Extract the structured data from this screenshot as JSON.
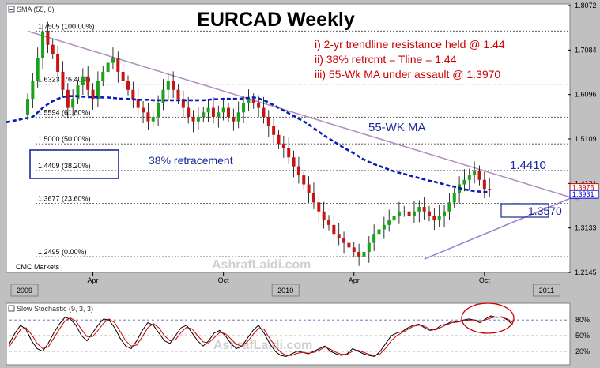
{
  "chart_data": [
    {
      "type": "candlestick",
      "title": "EURCAD Weekly",
      "indicator_label": "SMA (55, 0)",
      "source_label": "CMC Markets",
      "watermark": "AshrafLaidi.com",
      "y_axis": {
        "ylim": [
          1.2145,
          1.8072
        ],
        "ticks": [
          {
            "value": 1.8072,
            "label": "1.8072"
          },
          {
            "value": 1.7084,
            "label": "1.7084"
          },
          {
            "value": 1.6096,
            "label": "1.6096"
          },
          {
            "value": 1.5109,
            "label": "1.5109"
          },
          {
            "value": 1.4121,
            "label": "1.4121"
          },
          {
            "value": 1.3133,
            "label": "1.3133"
          },
          {
            "value": 1.2145,
            "label": "1.2145"
          }
        ],
        "price_tags": [
          {
            "value": 1.3975,
            "label": "1.3975",
            "color": "#cc0000"
          },
          {
            "value": 1.3931,
            "label": "1.3931",
            "color": "#0000cc"
          }
        ]
      },
      "x_axis": {
        "labels": [
          {
            "week": 0,
            "label": "2009",
            "style": "box"
          },
          {
            "week": 13,
            "label": "Apr",
            "style": "tick"
          },
          {
            "week": 39,
            "label": "Oct",
            "style": "tick"
          },
          {
            "week": 52,
            "label": "2010",
            "style": "box"
          },
          {
            "week": 65,
            "label": "Apr",
            "style": "tick"
          },
          {
            "week": 91,
            "label": "Oct",
            "style": "tick"
          },
          {
            "week": 104,
            "label": "2011",
            "style": "box"
          }
        ]
      },
      "fib_levels": [
        {
          "value": 1.7505,
          "label": "1.7505  (100.00%)"
        },
        {
          "value": 1.6323,
          "label": "1.6323  (76.40%)"
        },
        {
          "value": 1.5594,
          "label": "1.5594  (61.80%)"
        },
        {
          "value": 1.5,
          "label": "1.5000  (50.00%)"
        },
        {
          "value": 1.4409,
          "label": "1.4409  (38.20%)"
        },
        {
          "value": 1.3677,
          "label": "1.3677  (23.60%)"
        },
        {
          "value": 1.2495,
          "label": "1.2495  (0.00%)"
        }
      ],
      "annotations": [
        {
          "text": "i)  2-yr trendline resistance held @ 1.44",
          "color": "#cc0000"
        },
        {
          "text": "ii)  38% retrcmt = Tline = 1.44",
          "color": "#cc0000"
        },
        {
          "text": "iii)  55-Wk MA under assault @ 1.3970",
          "color": "#cc0000"
        },
        {
          "text": "55-WK MA",
          "color": "#1a2a9a"
        },
        {
          "text": "38% retracement",
          "color": "#1a2a9a"
        },
        {
          "text": "1.4410",
          "color": "#1a2a9a"
        },
        {
          "text": "1.3570",
          "color": "#1a2a9a"
        }
      ],
      "series": [
        {
          "name": "",
          "kind": "ohlc",
          "start": 1.565,
          "closes": [
            1.6,
            1.64,
            1.69,
            1.75,
            1.72,
            1.7,
            1.66,
            1.62,
            1.58,
            1.6,
            1.63,
            1.65,
            1.62,
            1.6,
            1.64,
            1.66,
            1.68,
            1.69,
            1.66,
            1.64,
            1.62,
            1.6,
            1.58,
            1.57,
            1.55,
            1.56,
            1.59,
            1.62,
            1.64,
            1.62,
            1.6,
            1.58,
            1.56,
            1.55,
            1.56,
            1.57,
            1.58,
            1.56,
            1.57,
            1.58,
            1.56,
            1.55,
            1.57,
            1.59,
            1.6,
            1.59,
            1.58,
            1.56,
            1.54,
            1.52,
            1.5,
            1.49,
            1.47,
            1.45,
            1.43,
            1.41,
            1.39,
            1.37,
            1.35,
            1.33,
            1.32,
            1.3,
            1.29,
            1.28,
            1.27,
            1.26,
            1.25,
            1.26,
            1.28,
            1.3,
            1.31,
            1.32,
            1.33,
            1.34,
            1.35,
            1.35,
            1.34,
            1.35,
            1.36,
            1.35,
            1.34,
            1.33,
            1.34,
            1.35,
            1.37,
            1.39,
            1.41,
            1.42,
            1.43,
            1.44,
            1.42,
            1.4,
            1.3975
          ]
        },
        {
          "name": "SMA (55, 0)",
          "kind": "line",
          "color": "#0a1cb4",
          "values": [
            1.548,
            1.56,
            1.57,
            1.58,
            1.588,
            1.595,
            1.6,
            1.604,
            1.606,
            1.606,
            1.606,
            1.605,
            1.604,
            1.604,
            1.604,
            1.603,
            1.603,
            1.602,
            1.601,
            1.6,
            1.6,
            1.599,
            1.598,
            1.598,
            1.598,
            1.597,
            1.597,
            1.597,
            1.597,
            1.597,
            1.597,
            1.597,
            1.597,
            1.597,
            1.597,
            1.597,
            1.598,
            1.599,
            1.599,
            1.6,
            1.6,
            1.6,
            1.6,
            1.601,
            1.602,
            1.603,
            1.601,
            1.597,
            1.592,
            1.586,
            1.58,
            1.574,
            1.568,
            1.562,
            1.556,
            1.55,
            1.543,
            1.535,
            1.527,
            1.519,
            1.512,
            1.505,
            1.498,
            1.491,
            1.485,
            1.479,
            1.472,
            1.465,
            1.46,
            1.455,
            1.451,
            1.447,
            1.443,
            1.439,
            1.436,
            1.433,
            1.43,
            1.427,
            1.424,
            1.421,
            1.418,
            1.416,
            1.413,
            1.41,
            1.407,
            1.405,
            1.402,
            1.399,
            1.397,
            1.395,
            1.394,
            1.393,
            1.3931
          ]
        },
        {
          "name": "",
          "kind": "trendline",
          "color": "#b090c0",
          "points": [
            [
              0,
              1.7505
            ],
            [
              110,
              1.375
            ]
          ]
        },
        {
          "name": "",
          "kind": "trendline",
          "color": "#a080d0",
          "points": [
            [
              79,
              1.244
            ],
            [
              110,
              1.388
            ]
          ]
        }
      ]
    },
    {
      "type": "line",
      "title": "Slow Stochastic (9, 3, 3)",
      "y_axis": {
        "ylim": [
          0,
          100
        ],
        "ticks": [
          {
            "value": 80,
            "label": "80%"
          },
          {
            "value": 50,
            "label": "50%"
          },
          {
            "value": 20,
            "label": "20%"
          }
        ]
      },
      "watermark": "AshrafLaidi.com",
      "series": [
        {
          "name": "",
          "color": "#000000",
          "values": [
            35,
            55,
            70,
            62,
            40,
            25,
            20,
            35,
            55,
            72,
            85,
            82,
            70,
            50,
            40,
            55,
            70,
            82,
            80,
            65,
            45,
            30,
            25,
            40,
            60,
            75,
            70,
            55,
            40,
            35,
            50,
            65,
            70,
            55,
            40,
            30,
            40,
            55,
            60,
            50,
            35,
            25,
            30,
            45,
            60,
            70,
            55,
            35,
            20,
            12,
            10,
            15,
            20,
            18,
            15,
            20,
            25,
            30,
            20,
            15,
            12,
            15,
            25,
            20,
            15,
            12,
            10,
            20,
            35,
            50,
            55,
            58,
            65,
            70,
            72,
            65,
            60,
            62,
            70,
            72,
            78,
            76,
            80,
            82,
            80,
            75,
            82,
            88,
            85,
            86,
            80,
            70
          ]
        },
        {
          "name": "",
          "color": "#cc0000",
          "values": [
            30,
            45,
            62,
            65,
            52,
            35,
            25,
            28,
            45,
            62,
            78,
            84,
            78,
            62,
            48,
            48,
            60,
            74,
            82,
            75,
            58,
            40,
            30,
            32,
            48,
            65,
            73,
            65,
            50,
            40,
            42,
            56,
            66,
            63,
            50,
            38,
            36,
            46,
            56,
            54,
            44,
            33,
            30,
            38,
            52,
            64,
            62,
            45,
            30,
            18,
            12,
            12,
            16,
            18,
            16,
            18,
            22,
            28,
            24,
            18,
            14,
            14,
            20,
            22,
            18,
            14,
            12,
            15,
            26,
            40,
            50,
            56,
            62,
            68,
            70,
            68,
            62,
            61,
            66,
            71,
            75,
            76,
            78,
            80,
            80,
            78,
            80,
            84,
            86,
            85,
            82,
            75
          ]
        }
      ],
      "annotations": [
        {
          "text": "",
          "kind": "circle",
          "color": "#cc0000"
        }
      ]
    }
  ]
}
